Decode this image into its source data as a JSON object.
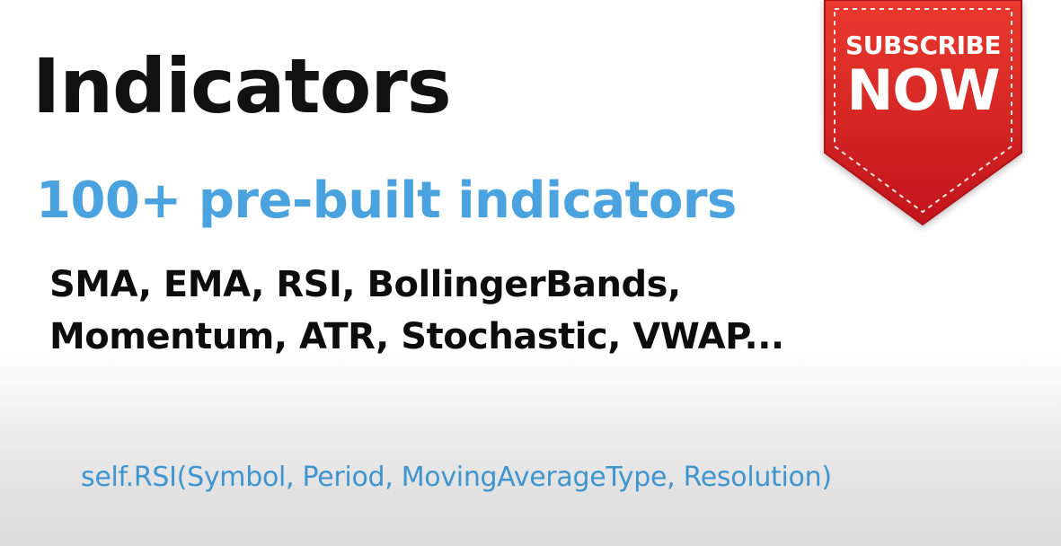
{
  "slide": {
    "title": "Indicators",
    "subtitle": "100+ pre-built indicators",
    "indicator_list": [
      "SMA, EMA, RSI, BollingerBands,",
      "Momentum, ATR, Stochastic, VWAP..."
    ],
    "code_sample": "self.RSI(Symbol, Period, MovingAverageType, Resolution)"
  },
  "badge": {
    "line1": "SUBSCRIBE",
    "line2": "NOW",
    "colors": {
      "red_top": "#e8332a",
      "red_bottom": "#c4151c",
      "stitch": "#ffffff"
    }
  },
  "colors": {
    "title": "#111111",
    "subtitle": "#4aa3df",
    "code": "#3f95d0"
  }
}
